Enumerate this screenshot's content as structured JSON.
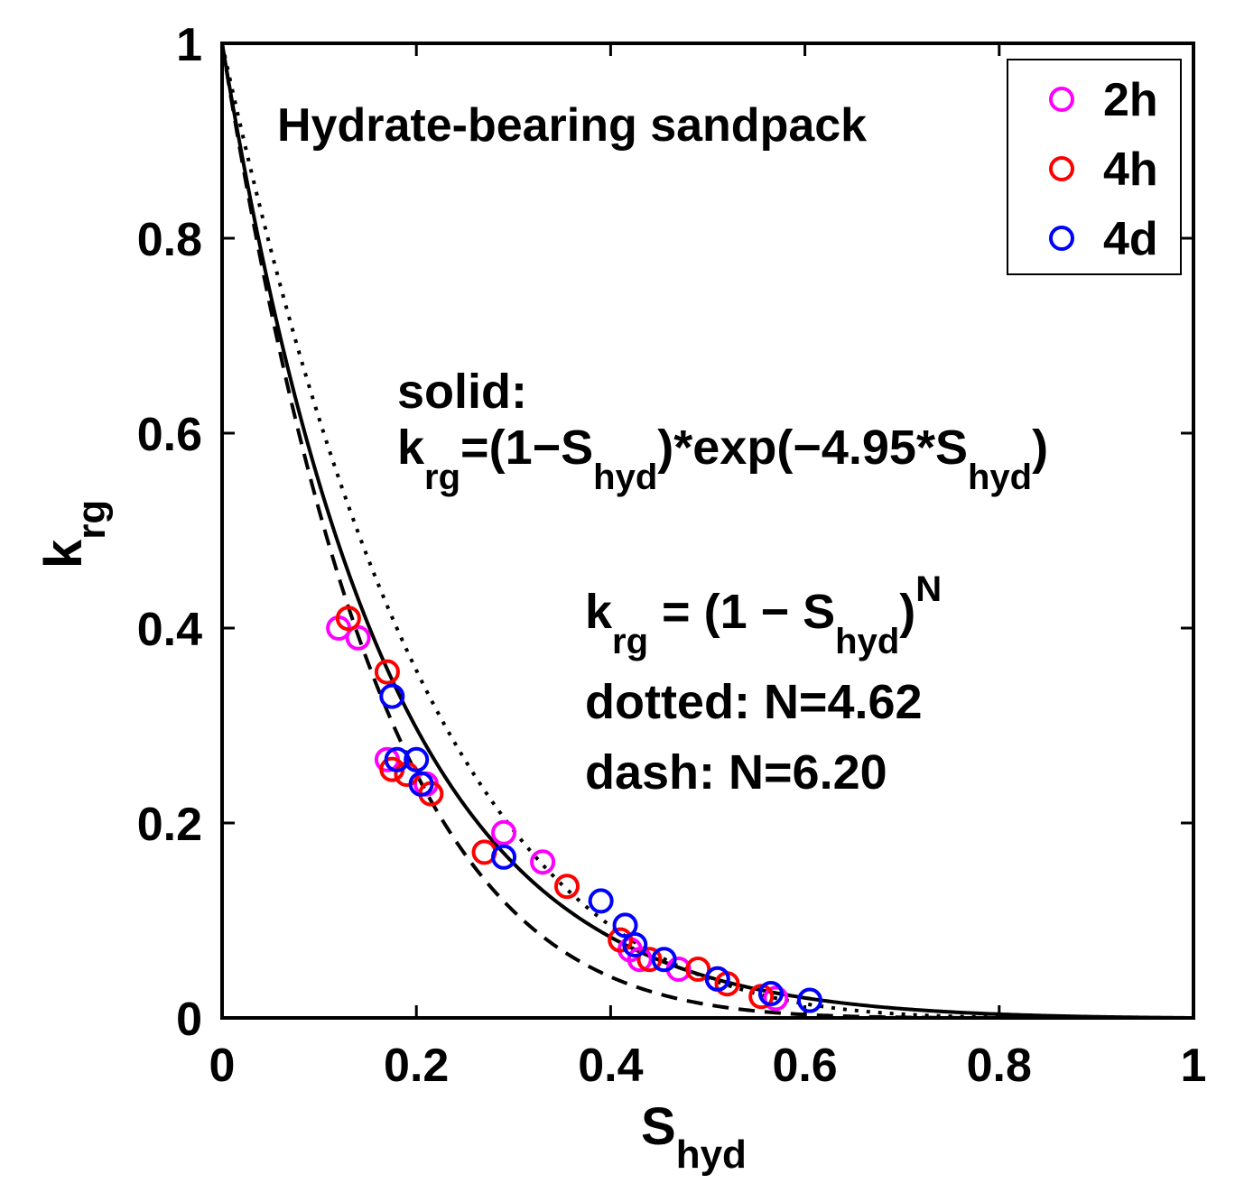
{
  "chart_data": {
    "type": "scatter",
    "title": "Hydrate-bearing sandpack",
    "xlabel": {
      "main": "S",
      "sub": "hyd"
    },
    "ylabel": {
      "main": "k",
      "sub": "rg"
    },
    "xlim": [
      0,
      1
    ],
    "ylim": [
      0,
      1
    ],
    "x_ticks": [
      0,
      0.2,
      0.4,
      0.6,
      0.8,
      1
    ],
    "y_ticks": [
      0,
      0.2,
      0.4,
      0.6,
      0.8,
      1
    ],
    "x_tick_labels": [
      "0",
      "0.2",
      "0.4",
      "0.6",
      "0.8",
      "1"
    ],
    "y_tick_labels": [
      "0",
      "0.2",
      "0.4",
      "0.6",
      "0.8",
      "1"
    ],
    "grid": false,
    "legend_position": "top-right",
    "series": [
      {
        "name": "2h",
        "color": "#ff00ff",
        "marker": "circle",
        "points": [
          [
            0.12,
            0.4
          ],
          [
            0.14,
            0.39
          ],
          [
            0.17,
            0.265
          ],
          [
            0.21,
            0.24
          ],
          [
            0.29,
            0.19
          ],
          [
            0.33,
            0.16
          ],
          [
            0.42,
            0.07
          ],
          [
            0.43,
            0.06
          ],
          [
            0.47,
            0.05
          ],
          [
            0.51,
            0.04
          ],
          [
            0.57,
            0.02
          ]
        ]
      },
      {
        "name": "4h",
        "color": "#ff0000",
        "marker": "circle",
        "points": [
          [
            0.13,
            0.41
          ],
          [
            0.17,
            0.355
          ],
          [
            0.175,
            0.255
          ],
          [
            0.19,
            0.25
          ],
          [
            0.215,
            0.23
          ],
          [
            0.27,
            0.17
          ],
          [
            0.355,
            0.135
          ],
          [
            0.41,
            0.08
          ],
          [
            0.44,
            0.06
          ],
          [
            0.49,
            0.05
          ],
          [
            0.52,
            0.035
          ],
          [
            0.555,
            0.022
          ]
        ]
      },
      {
        "name": "4d",
        "color": "#0000ff",
        "marker": "circle",
        "points": [
          [
            0.175,
            0.33
          ],
          [
            0.18,
            0.265
          ],
          [
            0.2,
            0.265
          ],
          [
            0.205,
            0.24
          ],
          [
            0.29,
            0.165
          ],
          [
            0.39,
            0.12
          ],
          [
            0.415,
            0.095
          ],
          [
            0.425,
            0.075
          ],
          [
            0.455,
            0.06
          ],
          [
            0.51,
            0.04
          ],
          [
            0.565,
            0.025
          ],
          [
            0.605,
            0.018
          ]
        ]
      }
    ],
    "model_curves": [
      {
        "name": "solid",
        "style": "solid",
        "formula": "krg=(1-Shyd)*exp(-4.95*Shyd)",
        "k": 4.95
      },
      {
        "name": "dotted",
        "style": "dotted",
        "formula": "krg=(1-Shyd)^N",
        "N": 4.62
      },
      {
        "name": "dash",
        "style": "dashed",
        "formula": "krg=(1-Shyd)^N",
        "N": 6.2
      }
    ],
    "annotations": {
      "solid_label": "solid:",
      "solid_k": "k",
      "solid_k_sub": "rg",
      "solid_mid": "=(1−S",
      "solid_sub1": "hyd",
      "solid_mid2": ")*exp(−4.95*S",
      "solid_sub2": "hyd",
      "solid_end": ")",
      "power_k": "k",
      "power_k_sub": "rg",
      "power_mid": " = (1 − S",
      "power_sub": "hyd",
      "power_end": ")",
      "power_sup": "N",
      "dotted_label": "dotted: N=4.62",
      "dash_label": "dash: N=6.20"
    }
  }
}
